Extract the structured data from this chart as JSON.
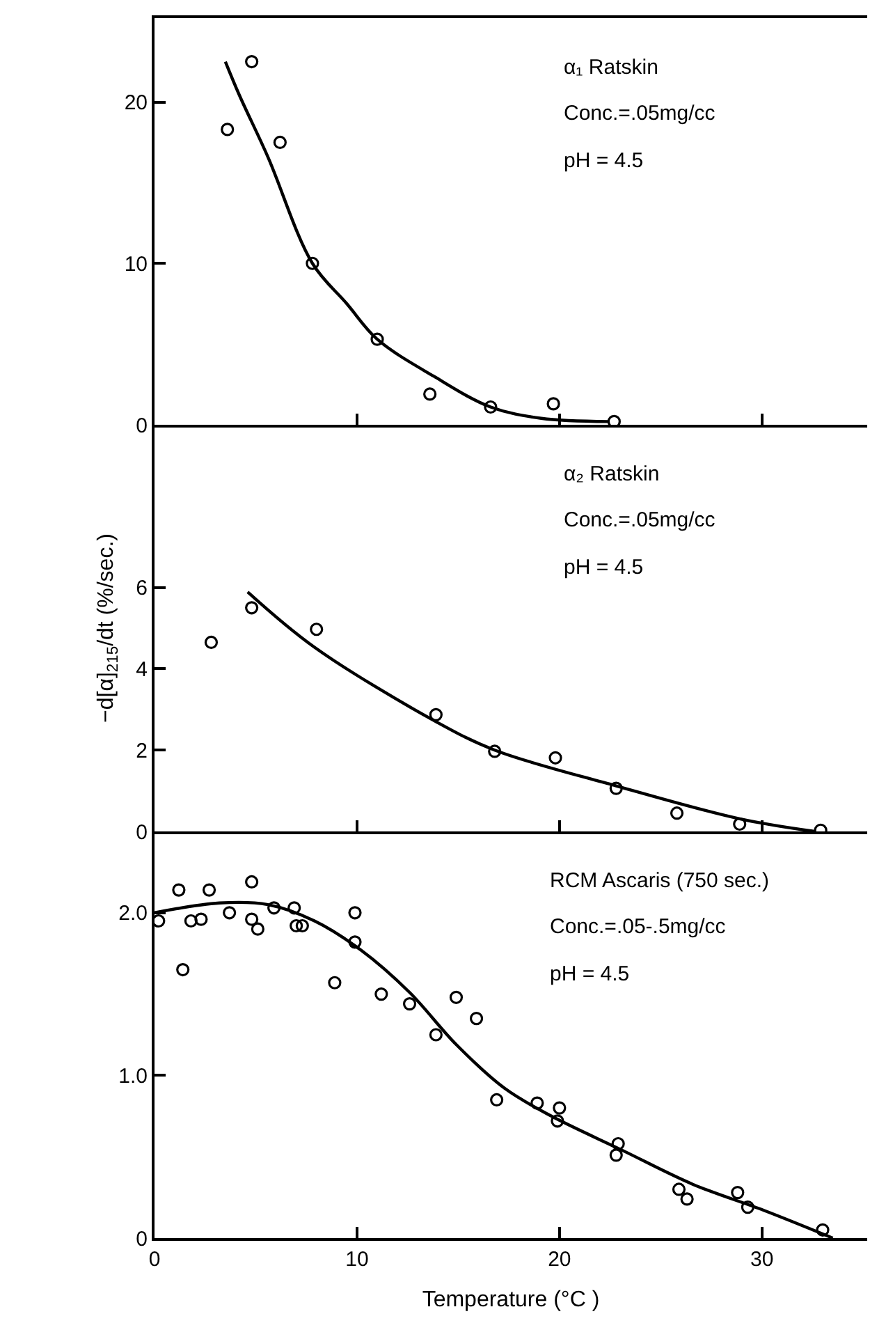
{
  "chart_data": [
    {
      "type": "scatter",
      "tick_labels": "y",
      "xlim": [
        0,
        35.2
      ],
      "xticks": [
        {
          "value": 0,
          "label": null
        },
        {
          "value": 10,
          "label": null
        },
        {
          "value": 20,
          "label": null
        },
        {
          "value": 30,
          "label": null
        }
      ],
      "ylim": [
        0,
        25.2
      ],
      "yticks": [
        0,
        10,
        20
      ],
      "annotations": [
        "α₁ Ratskin",
        "Conc.=.05mg/cc",
        "pH = 4.5"
      ],
      "series": [
        {
          "marker": "circle",
          "color": "#000000",
          "x": [
            3.6,
            4.8,
            6.2,
            7.8,
            11.0,
            13.6,
            16.6,
            19.7,
            22.7
          ],
          "values": [
            18.3,
            22.5,
            17.5,
            10.0,
            5.3,
            1.9,
            1.1,
            1.3,
            0.2
          ]
        },
        {
          "type": "line",
          "marker": "none",
          "color": "#000000",
          "x": [
            3.5,
            4.2,
            5.6,
            7.8,
            9.5,
            11.0,
            13.8,
            16.6,
            19.1,
            22.4
          ],
          "values": [
            22.5,
            20.4,
            16.6,
            10.0,
            7.5,
            5.3,
            3.0,
            1.1,
            0.4,
            0.2
          ]
        }
      ]
    },
    {
      "type": "scatter",
      "tick_labels": "y",
      "xlim": [
        0,
        35.2
      ],
      "xticks": [
        {
          "value": 0,
          "label": null
        },
        {
          "value": 10,
          "label": null
        },
        {
          "value": 20,
          "label": null
        },
        {
          "value": 30,
          "label": null
        }
      ],
      "ylim": [
        0,
        10
      ],
      "yticks": [
        0,
        2,
        4,
        6
      ],
      "ylabel": "−d[α]$_{215}$/dt (%/sec.)",
      "annotations": [
        "α₂ Ratskin",
        "Conc.=.05mg/cc",
        "pH = 4.5"
      ],
      "series": [
        {
          "marker": "circle",
          "color": "#000000",
          "x": [
            2.8,
            4.8,
            8.0,
            13.9,
            16.8,
            19.8,
            22.8,
            25.8,
            28.9,
            32.9
          ],
          "values": [
            4.65,
            5.5,
            4.97,
            2.87,
            1.97,
            1.81,
            1.06,
            0.45,
            0.18,
            0.03
          ]
        },
        {
          "type": "line",
          "marker": "none",
          "color": "#000000",
          "x": [
            4.6,
            7.9,
            13.9,
            16.8,
            22.8,
            28.9,
            32.6
          ],
          "values": [
            5.89,
            4.53,
            2.7,
            2.0,
            1.12,
            0.31,
            0
          ]
        }
      ]
    },
    {
      "type": "scatter",
      "xlim": [
        0,
        35.2
      ],
      "xticks": [
        0,
        10,
        20,
        30
      ],
      "ylim": [
        0,
        2.5
      ],
      "yticks": [
        0,
        {
          "value": 1,
          "label": "1.0"
        },
        {
          "value": 2,
          "label": "2.0"
        }
      ],
      "xlabel": "Temperature (°C )",
      "annotations": [
        "RCM Ascaris (750 sec.)",
        "Conc.=.05-.5mg/cc",
        "pH = 4.5"
      ],
      "series": [
        {
          "marker": "circle",
          "color": "#000000",
          "x": [
            0.2,
            1.2,
            1.4,
            1.8,
            2.3,
            2.7,
            3.7,
            4.8,
            4.8,
            5.1,
            5.9,
            6.9,
            7.0,
            7.3,
            9.9,
            9.9,
            8.9,
            11.2,
            12.6,
            13.9,
            14.9,
            15.9,
            16.9,
            18.9,
            20.0,
            19.9,
            22.9,
            22.8,
            25.9,
            26.3,
            28.8,
            29.3,
            33.0
          ],
          "values": [
            1.95,
            2.14,
            1.65,
            1.95,
            1.96,
            2.14,
            2.0,
            2.19,
            1.96,
            1.9,
            2.03,
            2.03,
            1.92,
            1.92,
            2.0,
            1.82,
            1.57,
            1.5,
            1.44,
            1.25,
            1.48,
            1.35,
            0.85,
            0.83,
            0.8,
            0.72,
            0.58,
            0.51,
            0.3,
            0.24,
            0.28,
            0.19,
            0.05
          ]
        },
        {
          "type": "line",
          "marker": "none",
          "color": "#000000",
          "x": [
            0,
            3.2,
            5.6,
            7.9,
            10.2,
            12.6,
            14.9,
            17.3,
            19.6,
            23.1,
            26.6,
            30.1,
            33.5
          ],
          "values": [
            2.0,
            2.06,
            2.05,
            1.95,
            1.77,
            1.51,
            1.19,
            0.92,
            0.75,
            0.54,
            0.33,
            0.17,
            0
          ]
        }
      ]
    }
  ]
}
